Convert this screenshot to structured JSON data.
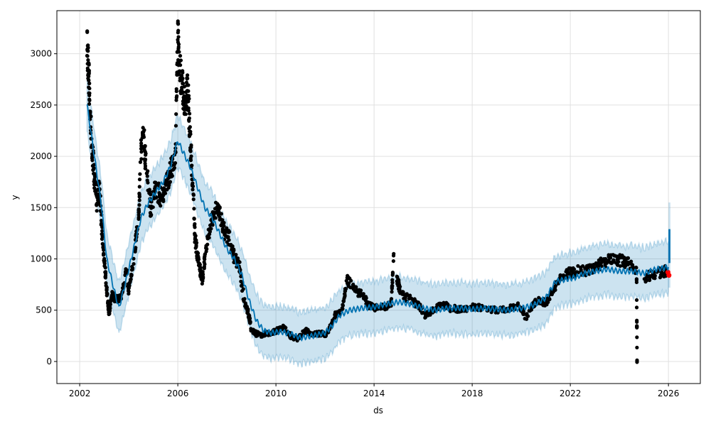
{
  "chart_data": {
    "type": "line",
    "title": "",
    "xlabel": "ds",
    "ylabel": "y",
    "xlim": [
      2001.07,
      2027.3
    ],
    "ylim": [
      -215,
      3420
    ],
    "grid": true,
    "x_ticks": [
      "2002",
      "2006",
      "2010",
      "2014",
      "2018",
      "2022",
      "2026"
    ],
    "y_ticks": [
      "0",
      "500",
      "1000",
      "1500",
      "2000",
      "2500",
      "3000"
    ],
    "colors": {
      "observed": "#000000",
      "forecast": "#0072B2",
      "interval": "#0072B2",
      "recent": "#ff0000"
    },
    "interval_halfwidth": 250,
    "yhat": [
      [
        2002.3,
        2500
      ],
      [
        2002.6,
        2000
      ],
      [
        2002.9,
        1500
      ],
      [
        2003.1,
        1000
      ],
      [
        2003.4,
        700
      ],
      [
        2003.6,
        520
      ],
      [
        2003.9,
        800
      ],
      [
        2004.2,
        1100
      ],
      [
        2004.5,
        1400
      ],
      [
        2004.8,
        1550
      ],
      [
        2005.1,
        1650
      ],
      [
        2005.4,
        1750
      ],
      [
        2005.7,
        1900
      ],
      [
        2006.0,
        2150
      ],
      [
        2006.2,
        2050
      ],
      [
        2006.5,
        1900
      ],
      [
        2006.8,
        1700
      ],
      [
        2007.1,
        1500
      ],
      [
        2007.4,
        1400
      ],
      [
        2007.7,
        1250
      ],
      [
        2008.0,
        1100
      ],
      [
        2008.3,
        1000
      ],
      [
        2008.6,
        850
      ],
      [
        2008.9,
        600
      ],
      [
        2009.2,
        400
      ],
      [
        2009.5,
        300
      ],
      [
        2009.8,
        280
      ],
      [
        2010.2,
        290
      ],
      [
        2010.6,
        270
      ],
      [
        2011.0,
        230
      ],
      [
        2011.5,
        250
      ],
      [
        2012.0,
        280
      ],
      [
        2012.3,
        350
      ],
      [
        2012.6,
        450
      ],
      [
        2013.0,
        500
      ],
      [
        2013.5,
        520
      ],
      [
        2014.0,
        530
      ],
      [
        2014.5,
        560
      ],
      [
        2015.0,
        580
      ],
      [
        2015.5,
        560
      ],
      [
        2016.0,
        520
      ],
      [
        2016.5,
        500
      ],
      [
        2017.0,
        520
      ],
      [
        2017.5,
        520
      ],
      [
        2018.0,
        510
      ],
      [
        2018.5,
        520
      ],
      [
        2019.0,
        510
      ],
      [
        2019.5,
        500
      ],
      [
        2020.0,
        520
      ],
      [
        2020.5,
        550
      ],
      [
        2021.0,
        620
      ],
      [
        2021.4,
        780
      ],
      [
        2021.8,
        800
      ],
      [
        2022.2,
        820
      ],
      [
        2022.6,
        860
      ],
      [
        2023.0,
        880
      ],
      [
        2023.5,
        900
      ],
      [
        2024.0,
        880
      ],
      [
        2024.5,
        880
      ],
      [
        2025.0,
        860
      ],
      [
        2025.5,
        900
      ],
      [
        2026.0,
        920
      ]
    ],
    "forecast_block": {
      "x": [
        2026.0,
        2026.08
      ],
      "y": [
        960,
        1290
      ],
      "upper": 1550,
      "lower": 720
    },
    "observed": [
      [
        2002.3,
        3100
      ],
      [
        2002.35,
        2900
      ],
      [
        2002.4,
        2600
      ],
      [
        2002.5,
        2100
      ],
      [
        2002.6,
        1800
      ],
      [
        2002.7,
        1550
      ],
      [
        2002.8,
        1700
      ],
      [
        2002.9,
        1300
      ],
      [
        2003.0,
        1000
      ],
      [
        2003.1,
        700
      ],
      [
        2003.2,
        450
      ],
      [
        2003.3,
        650
      ],
      [
        2003.5,
        600
      ],
      [
        2003.7,
        620
      ],
      [
        2003.9,
        900
      ],
      [
        2004.0,
        700
      ],
      [
        2004.2,
        1000
      ],
      [
        2004.4,
        1400
      ],
      [
        2004.5,
        2050
      ],
      [
        2004.6,
        2250
      ],
      [
        2004.7,
        1900
      ],
      [
        2004.9,
        1500
      ],
      [
        2005.1,
        1700
      ],
      [
        2005.3,
        1600
      ],
      [
        2005.5,
        1700
      ],
      [
        2005.7,
        1850
      ],
      [
        2005.9,
        2000
      ],
      [
        2006.0,
        3200
      ],
      [
        2006.05,
        2900
      ],
      [
        2006.2,
        2650
      ],
      [
        2006.3,
        2500
      ],
      [
        2006.4,
        2700
      ],
      [
        2006.5,
        2200
      ],
      [
        2006.6,
        1800
      ],
      [
        2006.7,
        1200
      ],
      [
        2006.8,
        1050
      ],
      [
        2006.9,
        900
      ],
      [
        2007.0,
        800
      ],
      [
        2007.1,
        1000
      ],
      [
        2007.3,
        1300
      ],
      [
        2007.5,
        1480
      ],
      [
        2007.7,
        1450
      ],
      [
        2007.9,
        1250
      ],
      [
        2008.1,
        1200
      ],
      [
        2008.3,
        1000
      ],
      [
        2008.5,
        950
      ],
      [
        2008.7,
        600
      ],
      [
        2008.9,
        450
      ],
      [
        2009.0,
        300
      ],
      [
        2009.2,
        270
      ],
      [
        2009.5,
        260
      ],
      [
        2009.8,
        280
      ],
      [
        2010.0,
        300
      ],
      [
        2010.3,
        330
      ],
      [
        2010.6,
        250
      ],
      [
        2010.9,
        220
      ],
      [
        2011.2,
        300
      ],
      [
        2011.5,
        260
      ],
      [
        2011.8,
        270
      ],
      [
        2012.1,
        270
      ],
      [
        2012.4,
        450
      ],
      [
        2012.7,
        500
      ],
      [
        2012.9,
        800
      ],
      [
        2013.2,
        700
      ],
      [
        2013.5,
        650
      ],
      [
        2013.8,
        550
      ],
      [
        2014.1,
        520
      ],
      [
        2014.4,
        530
      ],
      [
        2014.7,
        560
      ],
      [
        2014.8,
        1050
      ],
      [
        2014.9,
        850
      ],
      [
        2015.1,
        650
      ],
      [
        2015.5,
        600
      ],
      [
        2015.8,
        550
      ],
      [
        2016.1,
        450
      ],
      [
        2016.4,
        500
      ],
      [
        2016.8,
        560
      ],
      [
        2017.1,
        520
      ],
      [
        2017.5,
        510
      ],
      [
        2018.0,
        530
      ],
      [
        2018.5,
        520
      ],
      [
        2019.0,
        500
      ],
      [
        2019.5,
        520
      ],
      [
        2019.9,
        540
      ],
      [
        2020.2,
        430
      ],
      [
        2020.5,
        560
      ],
      [
        2020.8,
        600
      ],
      [
        2021.0,
        560
      ],
      [
        2021.3,
        700
      ],
      [
        2021.6,
        820
      ],
      [
        2021.9,
        860
      ],
      [
        2022.3,
        880
      ],
      [
        2022.7,
        890
      ],
      [
        2023.0,
        900
      ],
      [
        2023.3,
        970
      ],
      [
        2023.7,
        990
      ],
      [
        2024.1,
        980
      ],
      [
        2024.4,
        950
      ],
      [
        2024.7,
        880
      ],
      [
        2024.72,
        0
      ],
      [
        2025.0,
        820
      ],
      [
        2025.4,
        850
      ],
      [
        2025.8,
        880
      ]
    ],
    "recent": [
      [
        2025.98,
        870
      ],
      [
        2026.02,
        840
      ]
    ]
  }
}
